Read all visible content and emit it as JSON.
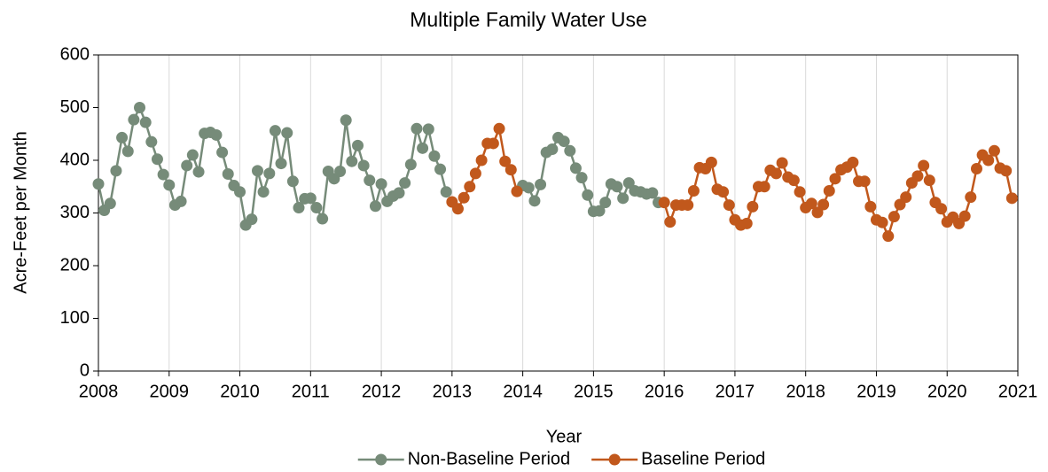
{
  "chart_data": {
    "type": "line",
    "title": "Multiple Family Water Use",
    "xlabel": "Year",
    "ylabel": "Acre-Feet per Month",
    "xlim": [
      2008,
      2021
    ],
    "xticks": [
      2008,
      2009,
      2010,
      2011,
      2012,
      2013,
      2014,
      2015,
      2016,
      2017,
      2018,
      2019,
      2020,
      2021
    ],
    "ylim": [
      0,
      600
    ],
    "yticks": [
      0,
      100,
      200,
      300,
      400,
      500,
      600
    ],
    "grid": "x",
    "legend": "bottom",
    "x": [
      2008,
      2008.083,
      2008.167,
      2008.25,
      2008.333,
      2008.417,
      2008.5,
      2008.583,
      2008.667,
      2008.75,
      2008.833,
      2008.917,
      2009,
      2009.083,
      2009.167,
      2009.25,
      2009.333,
      2009.417,
      2009.5,
      2009.583,
      2009.667,
      2009.75,
      2009.833,
      2009.917,
      2010,
      2010.083,
      2010.167,
      2010.25,
      2010.333,
      2010.417,
      2010.5,
      2010.583,
      2010.667,
      2010.75,
      2010.833,
      2010.917,
      2011,
      2011.083,
      2011.167,
      2011.25,
      2011.333,
      2011.417,
      2011.5,
      2011.583,
      2011.667,
      2011.75,
      2011.833,
      2011.917,
      2012,
      2012.083,
      2012.167,
      2012.25,
      2012.333,
      2012.417,
      2012.5,
      2012.583,
      2012.667,
      2012.75,
      2012.833,
      2012.917,
      2013,
      2013.083,
      2013.167,
      2013.25,
      2013.333,
      2013.417,
      2013.5,
      2013.583,
      2013.667,
      2013.75,
      2013.833,
      2013.917,
      2014,
      2014.083,
      2014.167,
      2014.25,
      2014.333,
      2014.417,
      2014.5,
      2014.583,
      2014.667,
      2014.75,
      2014.833,
      2014.917,
      2015,
      2015.083,
      2015.167,
      2015.25,
      2015.333,
      2015.417,
      2015.5,
      2015.583,
      2015.667,
      2015.75,
      2015.833,
      2015.917,
      2016,
      2016.083,
      2016.167,
      2016.25,
      2016.333,
      2016.417,
      2016.5,
      2016.583,
      2016.667,
      2016.75,
      2016.833,
      2016.917,
      2017,
      2017.083,
      2017.167,
      2017.25,
      2017.333,
      2017.417,
      2017.5,
      2017.583,
      2017.667,
      2017.75,
      2017.833,
      2017.917,
      2018,
      2018.083,
      2018.167,
      2018.25,
      2018.333,
      2018.417,
      2018.5,
      2018.583,
      2018.667,
      2018.75,
      2018.833,
      2018.917,
      2019,
      2019.083,
      2019.167,
      2019.25,
      2019.333,
      2019.417,
      2019.5,
      2019.583,
      2019.667,
      2019.75,
      2019.833,
      2019.917,
      2020,
      2020.083,
      2020.167,
      2020.25,
      2020.333,
      2020.417,
      2020.5,
      2020.583,
      2020.667,
      2020.75,
      2020.833,
      2020.917
    ],
    "series": [
      {
        "name": "Non-Baseline Period",
        "color": "#768b79",
        "values": [
          355,
          305,
          318,
          380,
          443,
          417,
          477,
          500,
          472,
          435,
          402,
          373,
          353,
          315,
          322,
          390,
          410,
          378,
          451,
          453,
          448,
          415,
          374,
          352,
          340,
          277,
          288,
          380,
          340,
          375,
          456,
          394,
          452,
          360,
          310,
          327,
          328,
          310,
          289,
          379,
          365,
          379,
          476,
          398,
          428,
          390,
          362,
          313,
          355,
          322,
          332,
          338,
          357,
          392,
          460,
          423,
          459,
          408,
          383,
          340,
          null,
          null,
          null,
          null,
          null,
          null,
          null,
          null,
          null,
          null,
          null,
          null,
          352,
          348,
          323,
          354,
          415,
          421,
          443,
          436,
          418,
          385,
          367,
          334,
          303,
          304,
          320,
          355,
          350,
          328,
          357,
          342,
          340,
          336,
          338,
          320,
          null,
          null,
          null,
          null,
          null,
          null,
          null,
          null,
          null,
          null,
          null,
          null,
          null,
          null,
          null,
          null,
          null,
          null,
          null,
          null,
          null,
          null,
          null,
          null,
          null,
          null,
          null,
          null,
          null,
          null,
          null,
          null,
          null,
          null,
          null,
          null,
          null,
          null,
          null,
          null,
          null,
          null,
          null,
          null,
          null,
          null,
          null,
          null,
          null,
          null,
          null,
          null,
          null,
          null,
          null,
          null,
          null,
          null,
          null,
          null
        ]
      },
      {
        "name": "Baseline Period",
        "color": "#c1581c",
        "values": [
          null,
          null,
          null,
          null,
          null,
          null,
          null,
          null,
          null,
          null,
          null,
          null,
          null,
          null,
          null,
          null,
          null,
          null,
          null,
          null,
          null,
          null,
          null,
          null,
          null,
          null,
          null,
          null,
          null,
          null,
          null,
          null,
          null,
          null,
          null,
          null,
          null,
          null,
          null,
          null,
          null,
          null,
          null,
          null,
          null,
          null,
          null,
          null,
          null,
          null,
          null,
          null,
          null,
          null,
          null,
          null,
          null,
          null,
          null,
          null,
          321,
          308,
          329,
          350,
          375,
          400,
          432,
          432,
          460,
          398,
          382,
          341,
          null,
          null,
          null,
          null,
          null,
          null,
          null,
          null,
          null,
          null,
          null,
          null,
          null,
          null,
          null,
          null,
          null,
          null,
          null,
          null,
          null,
          null,
          null,
          null,
          320,
          283,
          315,
          315,
          315,
          342,
          386,
          384,
          396,
          345,
          340,
          315,
          287,
          277,
          280,
          312,
          350,
          350,
          381,
          375,
          395,
          368,
          362,
          340,
          310,
          318,
          301,
          316,
          342,
          365,
          382,
          387,
          396,
          360,
          360,
          312,
          287,
          282,
          256,
          293,
          316,
          330,
          357,
          370,
          390,
          362,
          320,
          308,
          283,
          292,
          280,
          294,
          330,
          384,
          410,
          400,
          418,
          385,
          380,
          328
        ]
      }
    ]
  }
}
